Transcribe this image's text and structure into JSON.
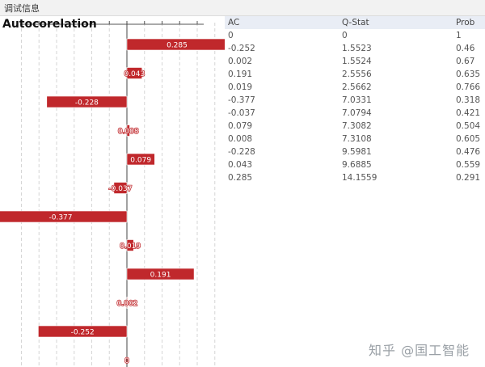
{
  "window": {
    "title": "调试信息"
  },
  "chart_data": {
    "type": "bar",
    "orientation": "horizontal",
    "title": "Autocorelation",
    "values": [
      0.285,
      0.043,
      -0.228,
      0.008,
      0.079,
      -0.037,
      -0.377,
      0.019,
      0.191,
      0.002,
      -0.252,
      0
    ],
    "labels": [
      "0.285",
      "0.043",
      "-0.228",
      "0.008",
      "0.079",
      "-0.037",
      "-0.377",
      "0.019",
      "0.191",
      "0.002",
      "-0.252",
      "0"
    ],
    "xlim": [
      -0.4,
      0.3
    ],
    "grid": true,
    "colors": {
      "bar": "#c0282c",
      "bar_edge": "#ffffff"
    }
  },
  "table": {
    "columns": [
      "AC",
      "Q-Stat",
      "Prob"
    ],
    "rows": [
      [
        "0",
        "0",
        "1"
      ],
      [
        "-0.252",
        "1.5523",
        "0.46"
      ],
      [
        "0.002",
        "1.5524",
        "0.67"
      ],
      [
        "0.191",
        "2.5556",
        "0.635"
      ],
      [
        "0.019",
        "2.5662",
        "0.766"
      ],
      [
        "-0.377",
        "7.0331",
        "0.318"
      ],
      [
        "-0.037",
        "7.0794",
        "0.421"
      ],
      [
        "0.079",
        "7.3082",
        "0.504"
      ],
      [
        "0.008",
        "7.3108",
        "0.605"
      ],
      [
        "-0.228",
        "9.5981",
        "0.476"
      ],
      [
        "0.043",
        "9.6885",
        "0.559"
      ],
      [
        "0.285",
        "14.1559",
        "0.291"
      ]
    ]
  },
  "watermark": "知乎 @国工智能"
}
